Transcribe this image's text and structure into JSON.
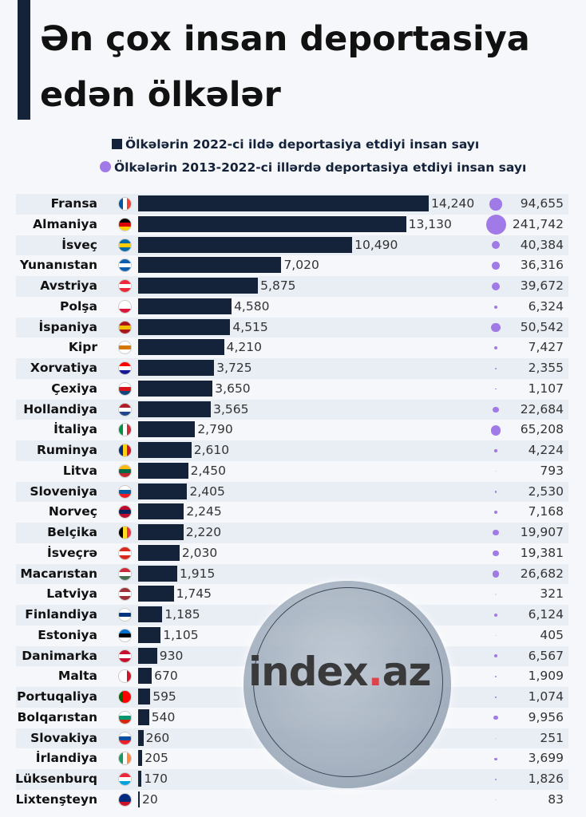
{
  "title": "Ən çox insan deportasiya edən ölkələr",
  "watermark": "index.az",
  "chart_data": {
    "type": "bar",
    "title": "Ən çox insan deportasiya edən ölkələr",
    "legend": [
      "Ölkələrin 2022-ci ildə deportasiya etdiyi insan sayı",
      "Ölkələrin 2013-2022-ci illərdə deportasiya etdiyi insan sayı"
    ],
    "colors": {
      "bar": "#14223a",
      "bubble": "#a07be8"
    },
    "categories": [
      "Fransa",
      "Almaniya",
      "İsveç",
      "Yunanıstan",
      "Avstriya",
      "Polşa",
      "İspaniya",
      "Kipr",
      "Xorvatiya",
      "Çexiya",
      "Hollandiya",
      "İtaliya",
      "Ruminya",
      "Litva",
      "Sloveniya",
      "Norveç",
      "Belçika",
      "İsveçrə",
      "Macarıstan",
      "Latviya",
      "Finlandiya",
      "Estoniya",
      "Danimarka",
      "Malta",
      "Portuqaliya",
      "Bolqarıstan",
      "Slovakiya",
      "İrlandiya",
      "Lüksenburq",
      "Lixtenşteyn"
    ],
    "series": [
      {
        "name": "2022",
        "values": [
          14240,
          13130,
          10490,
          7020,
          5875,
          4580,
          4515,
          4210,
          3725,
          3650,
          3565,
          2790,
          2610,
          2450,
          2405,
          2245,
          2220,
          2030,
          1915,
          1745,
          1185,
          1105,
          930,
          670,
          595,
          540,
          260,
          205,
          170,
          20
        ]
      },
      {
        "name": "2013-2022",
        "values": [
          94655,
          241742,
          40384,
          36316,
          39672,
          6324,
          50542,
          7427,
          2355,
          1107,
          22684,
          65208,
          4224,
          793,
          2530,
          7168,
          19907,
          19381,
          26682,
          321,
          6124,
          405,
          6567,
          1909,
          1074,
          9956,
          251,
          3699,
          1826,
          83
        ]
      }
    ],
    "flags": [
      [
        "#0055a4",
        "#fff",
        "#ef4135",
        "v"
      ],
      [
        "#000",
        "#dd0000",
        "#ffce00",
        "h"
      ],
      [
        "#006aa7",
        "#fecc00",
        "#006aa7",
        "h"
      ],
      [
        "#0d5eaf",
        "#fff",
        "#0d5eaf",
        "h"
      ],
      [
        "#ed2939",
        "#fff",
        "#ed2939",
        "h"
      ],
      [
        "#fff",
        "#fff",
        "#dc143c",
        "h"
      ],
      [
        "#aa151b",
        "#f1bf00",
        "#aa151b",
        "h"
      ],
      [
        "#fff",
        "#d57800",
        "#fff",
        "h"
      ],
      [
        "#ff0000",
        "#fff",
        "#171796",
        "h"
      ],
      [
        "#fff",
        "#d7141a",
        "#11457e",
        "h"
      ],
      [
        "#ae1c28",
        "#fff",
        "#21468b",
        "h"
      ],
      [
        "#009246",
        "#fff",
        "#ce2b37",
        "v"
      ],
      [
        "#002b7f",
        "#fcd116",
        "#ce1126",
        "v"
      ],
      [
        "#fdb913",
        "#006a44",
        "#c1272d",
        "h"
      ],
      [
        "#fff",
        "#005da4",
        "#ed1c24",
        "h"
      ],
      [
        "#ba0c2f",
        "#00205b",
        "#ba0c2f",
        "h"
      ],
      [
        "#000",
        "#fdda24",
        "#ef3340",
        "v"
      ],
      [
        "#da291c",
        "#fff",
        "#da291c",
        "h"
      ],
      [
        "#ce2939",
        "#fff",
        "#477050",
        "h"
      ],
      [
        "#9e3039",
        "#fff",
        "#9e3039",
        "h"
      ],
      [
        "#fff",
        "#003580",
        "#fff",
        "h"
      ],
      [
        "#0072ce",
        "#000",
        "#fff",
        "h"
      ],
      [
        "#c8102e",
        "#fff",
        "#c8102e",
        "h"
      ],
      [
        "#fff",
        "#fff",
        "#cf142b",
        "v"
      ],
      [
        "#006600",
        "#ff0000",
        "#ff0000",
        "v"
      ],
      [
        "#fff",
        "#00966e",
        "#d62612",
        "h"
      ],
      [
        "#fff",
        "#0b4ea2",
        "#ee1c25",
        "h"
      ],
      [
        "#169b62",
        "#fff",
        "#ff883e",
        "v"
      ],
      [
        "#ed2939",
        "#fff",
        "#00a1de",
        "h"
      ],
      [
        "#002b7f",
        "#002b7f",
        "#ce1126",
        "h"
      ]
    ]
  }
}
